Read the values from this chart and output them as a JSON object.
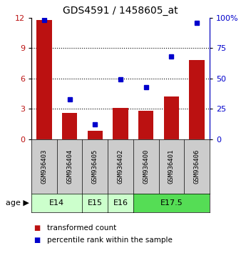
{
  "title": "GDS4591 / 1458605_at",
  "samples": [
    "GSM936403",
    "GSM936404",
    "GSM936405",
    "GSM936402",
    "GSM936400",
    "GSM936401",
    "GSM936406"
  ],
  "transformed_count": [
    11.8,
    2.6,
    0.8,
    3.1,
    2.8,
    4.2,
    7.8
  ],
  "percentile_rank": [
    98,
    33,
    12,
    49,
    43,
    68,
    96
  ],
  "left_ylim": [
    0,
    12
  ],
  "right_ylim": [
    0,
    100
  ],
  "left_yticks": [
    0,
    3,
    6,
    9,
    12
  ],
  "right_yticks": [
    0,
    25,
    50,
    75,
    100
  ],
  "bar_color": "#bb1111",
  "dot_color": "#0000cc",
  "age_groups": [
    {
      "label": "E14",
      "start": 0,
      "end": 2,
      "color": "#ccffcc"
    },
    {
      "label": "E15",
      "start": 2,
      "end": 3,
      "color": "#ccffcc"
    },
    {
      "label": "E16",
      "start": 3,
      "end": 4,
      "color": "#ccffcc"
    },
    {
      "label": "E17.5",
      "start": 4,
      "end": 7,
      "color": "#55dd55"
    }
  ],
  "sample_box_color": "#cccccc",
  "grid_color": "#555555",
  "legend_red_label": "transformed count",
  "legend_blue_label": "percentile rank within the sample",
  "age_label": "age"
}
